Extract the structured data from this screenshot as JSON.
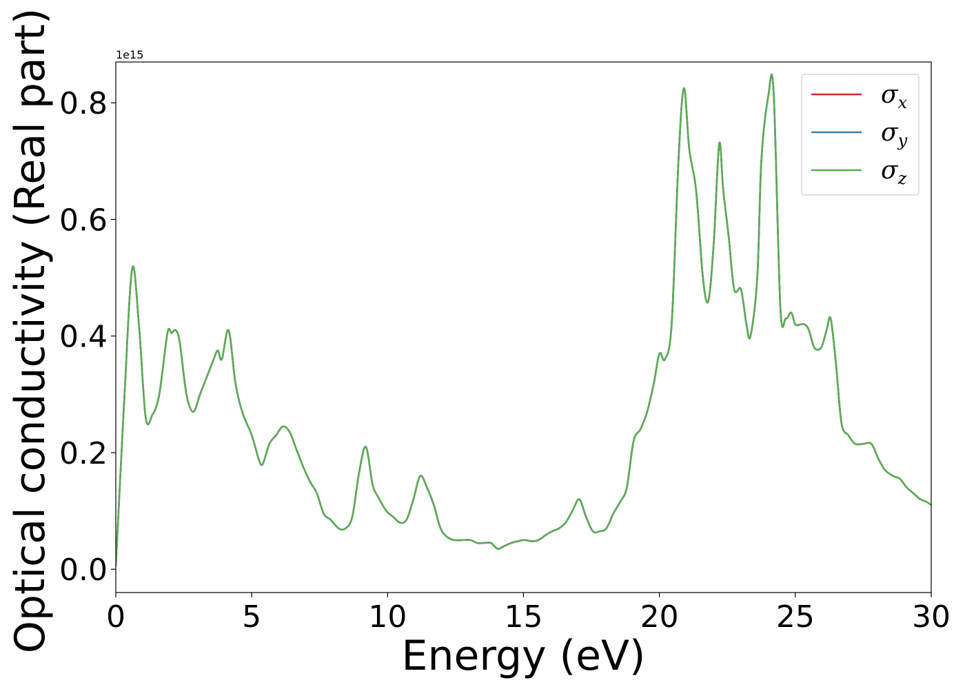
{
  "chart_data": {
    "type": "line",
    "title": "",
    "xlabel": "Energy (eV)",
    "ylabel": "Optical conductivity (Real part)",
    "y_offset_text": "1e15",
    "xlim": [
      0,
      30
    ],
    "ylim": [
      -0.04,
      0.87
    ],
    "y_scale_multiplier": 1000000000000000.0,
    "x_ticks": [
      0,
      5,
      10,
      15,
      20,
      25,
      30
    ],
    "x_tick_labels": [
      "0",
      "5",
      "10",
      "15",
      "20",
      "25",
      "30"
    ],
    "y_ticks": [
      0.0,
      0.2,
      0.4,
      0.6,
      0.8
    ],
    "y_tick_labels": [
      "0.0",
      "0.2",
      "0.4",
      "0.6",
      "0.8"
    ],
    "grid": false,
    "legend_position": "top-right",
    "x": [
      0,
      0.3,
      0.6,
      0.85,
      1.1,
      1.35,
      1.6,
      1.9,
      2.05,
      2.2,
      2.35,
      2.6,
      2.85,
      3.1,
      3.35,
      3.6,
      3.75,
      3.9,
      4.15,
      4.4,
      4.65,
      5.0,
      5.25,
      5.4,
      5.65,
      5.9,
      6.15,
      6.4,
      6.65,
      6.9,
      7.15,
      7.4,
      7.65,
      7.9,
      8.2,
      8.45,
      8.7,
      8.95,
      9.2,
      9.45,
      9.7,
      9.95,
      10.2,
      10.45,
      10.7,
      10.95,
      11.2,
      11.45,
      11.7,
      11.95,
      12.2,
      12.45,
      12.8,
      13.05,
      13.3,
      13.55,
      13.8,
      14.05,
      14.3,
      14.55,
      14.8,
      15.05,
      15.3,
      15.55,
      15.8,
      16.05,
      16.3,
      16.55,
      16.8,
      17.05,
      17.3,
      17.55,
      17.8,
      18.05,
      18.3,
      18.55,
      18.8,
      19.05,
      19.3,
      19.55,
      19.8,
      20.0,
      20.2,
      20.45,
      20.7,
      20.9,
      21.1,
      21.35,
      21.6,
      21.8,
      22.0,
      22.2,
      22.35,
      22.55,
      22.75,
      23.0,
      23.2,
      23.35,
      23.6,
      23.75,
      24.0,
      24.2,
      24.45,
      24.65,
      24.85,
      25.0,
      25.2,
      25.35,
      25.5,
      25.7,
      25.95,
      26.15,
      26.3,
      26.5,
      26.7,
      26.95,
      27.2,
      27.5,
      27.8,
      28.05,
      28.3,
      28.6,
      28.85,
      29.1,
      29.35,
      29.6,
      29.85,
      30.0
    ],
    "series": [
      {
        "name": "σx",
        "name_base": "σ",
        "name_sub": "x",
        "color": "#d62728",
        "values": [
          0.005,
          0.28,
          0.515,
          0.42,
          0.26,
          0.265,
          0.3,
          0.405,
          0.405,
          0.41,
          0.39,
          0.3,
          0.27,
          0.3,
          0.33,
          0.36,
          0.375,
          0.36,
          0.41,
          0.32,
          0.27,
          0.23,
          0.19,
          0.18,
          0.215,
          0.23,
          0.245,
          0.235,
          0.205,
          0.175,
          0.15,
          0.13,
          0.095,
          0.085,
          0.07,
          0.07,
          0.09,
          0.165,
          0.21,
          0.145,
          0.12,
          0.1,
          0.09,
          0.08,
          0.085,
          0.12,
          0.16,
          0.14,
          0.11,
          0.07,
          0.055,
          0.05,
          0.05,
          0.05,
          0.045,
          0.045,
          0.045,
          0.035,
          0.04,
          0.045,
          0.048,
          0.05,
          0.048,
          0.05,
          0.058,
          0.065,
          0.07,
          0.08,
          0.1,
          0.12,
          0.09,
          0.065,
          0.065,
          0.07,
          0.095,
          0.115,
          0.14,
          0.22,
          0.24,
          0.27,
          0.32,
          0.37,
          0.36,
          0.42,
          0.7,
          0.825,
          0.72,
          0.65,
          0.5,
          0.46,
          0.56,
          0.73,
          0.65,
          0.57,
          0.48,
          0.48,
          0.42,
          0.4,
          0.5,
          0.7,
          0.81,
          0.82,
          0.45,
          0.43,
          0.44,
          0.42,
          0.42,
          0.42,
          0.41,
          0.38,
          0.38,
          0.41,
          0.43,
          0.35,
          0.25,
          0.23,
          0.215,
          0.215,
          0.215,
          0.19,
          0.17,
          0.16,
          0.155,
          0.14,
          0.13,
          0.12,
          0.115,
          0.11
        ]
      },
      {
        "name": "σy",
        "name_base": "σ",
        "name_sub": "y",
        "color": "#3a7fb5",
        "values": [
          0.005,
          0.28,
          0.515,
          0.42,
          0.26,
          0.265,
          0.3,
          0.405,
          0.405,
          0.41,
          0.39,
          0.3,
          0.27,
          0.3,
          0.33,
          0.36,
          0.375,
          0.36,
          0.41,
          0.32,
          0.27,
          0.23,
          0.19,
          0.18,
          0.215,
          0.23,
          0.245,
          0.235,
          0.205,
          0.175,
          0.15,
          0.13,
          0.095,
          0.085,
          0.07,
          0.07,
          0.09,
          0.165,
          0.21,
          0.145,
          0.12,
          0.1,
          0.09,
          0.08,
          0.085,
          0.12,
          0.16,
          0.14,
          0.11,
          0.07,
          0.055,
          0.05,
          0.05,
          0.05,
          0.045,
          0.045,
          0.045,
          0.035,
          0.04,
          0.045,
          0.048,
          0.05,
          0.048,
          0.05,
          0.058,
          0.065,
          0.07,
          0.08,
          0.1,
          0.12,
          0.09,
          0.065,
          0.065,
          0.07,
          0.095,
          0.115,
          0.14,
          0.22,
          0.24,
          0.27,
          0.32,
          0.37,
          0.36,
          0.42,
          0.7,
          0.825,
          0.72,
          0.65,
          0.5,
          0.46,
          0.56,
          0.73,
          0.65,
          0.57,
          0.48,
          0.48,
          0.42,
          0.4,
          0.5,
          0.7,
          0.81,
          0.82,
          0.45,
          0.43,
          0.44,
          0.42,
          0.42,
          0.42,
          0.41,
          0.38,
          0.38,
          0.41,
          0.43,
          0.35,
          0.25,
          0.23,
          0.215,
          0.215,
          0.215,
          0.19,
          0.17,
          0.16,
          0.155,
          0.14,
          0.13,
          0.12,
          0.115,
          0.11
        ]
      },
      {
        "name": "σz",
        "name_base": "σ",
        "name_sub": "z",
        "color": "#5aad52",
        "values": [
          0.005,
          0.28,
          0.515,
          0.42,
          0.26,
          0.265,
          0.3,
          0.405,
          0.405,
          0.41,
          0.39,
          0.3,
          0.27,
          0.3,
          0.33,
          0.36,
          0.375,
          0.36,
          0.41,
          0.32,
          0.27,
          0.23,
          0.19,
          0.18,
          0.215,
          0.23,
          0.245,
          0.235,
          0.205,
          0.175,
          0.15,
          0.13,
          0.095,
          0.085,
          0.07,
          0.07,
          0.09,
          0.165,
          0.21,
          0.145,
          0.12,
          0.1,
          0.09,
          0.08,
          0.085,
          0.12,
          0.16,
          0.14,
          0.11,
          0.07,
          0.055,
          0.05,
          0.05,
          0.05,
          0.045,
          0.045,
          0.045,
          0.035,
          0.04,
          0.045,
          0.048,
          0.05,
          0.048,
          0.05,
          0.058,
          0.065,
          0.07,
          0.08,
          0.1,
          0.12,
          0.09,
          0.065,
          0.065,
          0.07,
          0.095,
          0.115,
          0.14,
          0.22,
          0.24,
          0.27,
          0.32,
          0.37,
          0.36,
          0.42,
          0.7,
          0.825,
          0.72,
          0.65,
          0.5,
          0.46,
          0.56,
          0.73,
          0.65,
          0.57,
          0.48,
          0.48,
          0.42,
          0.4,
          0.5,
          0.7,
          0.81,
          0.82,
          0.45,
          0.43,
          0.44,
          0.42,
          0.42,
          0.42,
          0.41,
          0.38,
          0.38,
          0.41,
          0.43,
          0.35,
          0.25,
          0.23,
          0.215,
          0.215,
          0.215,
          0.19,
          0.17,
          0.16,
          0.155,
          0.14,
          0.13,
          0.12,
          0.115,
          0.11
        ]
      }
    ]
  }
}
